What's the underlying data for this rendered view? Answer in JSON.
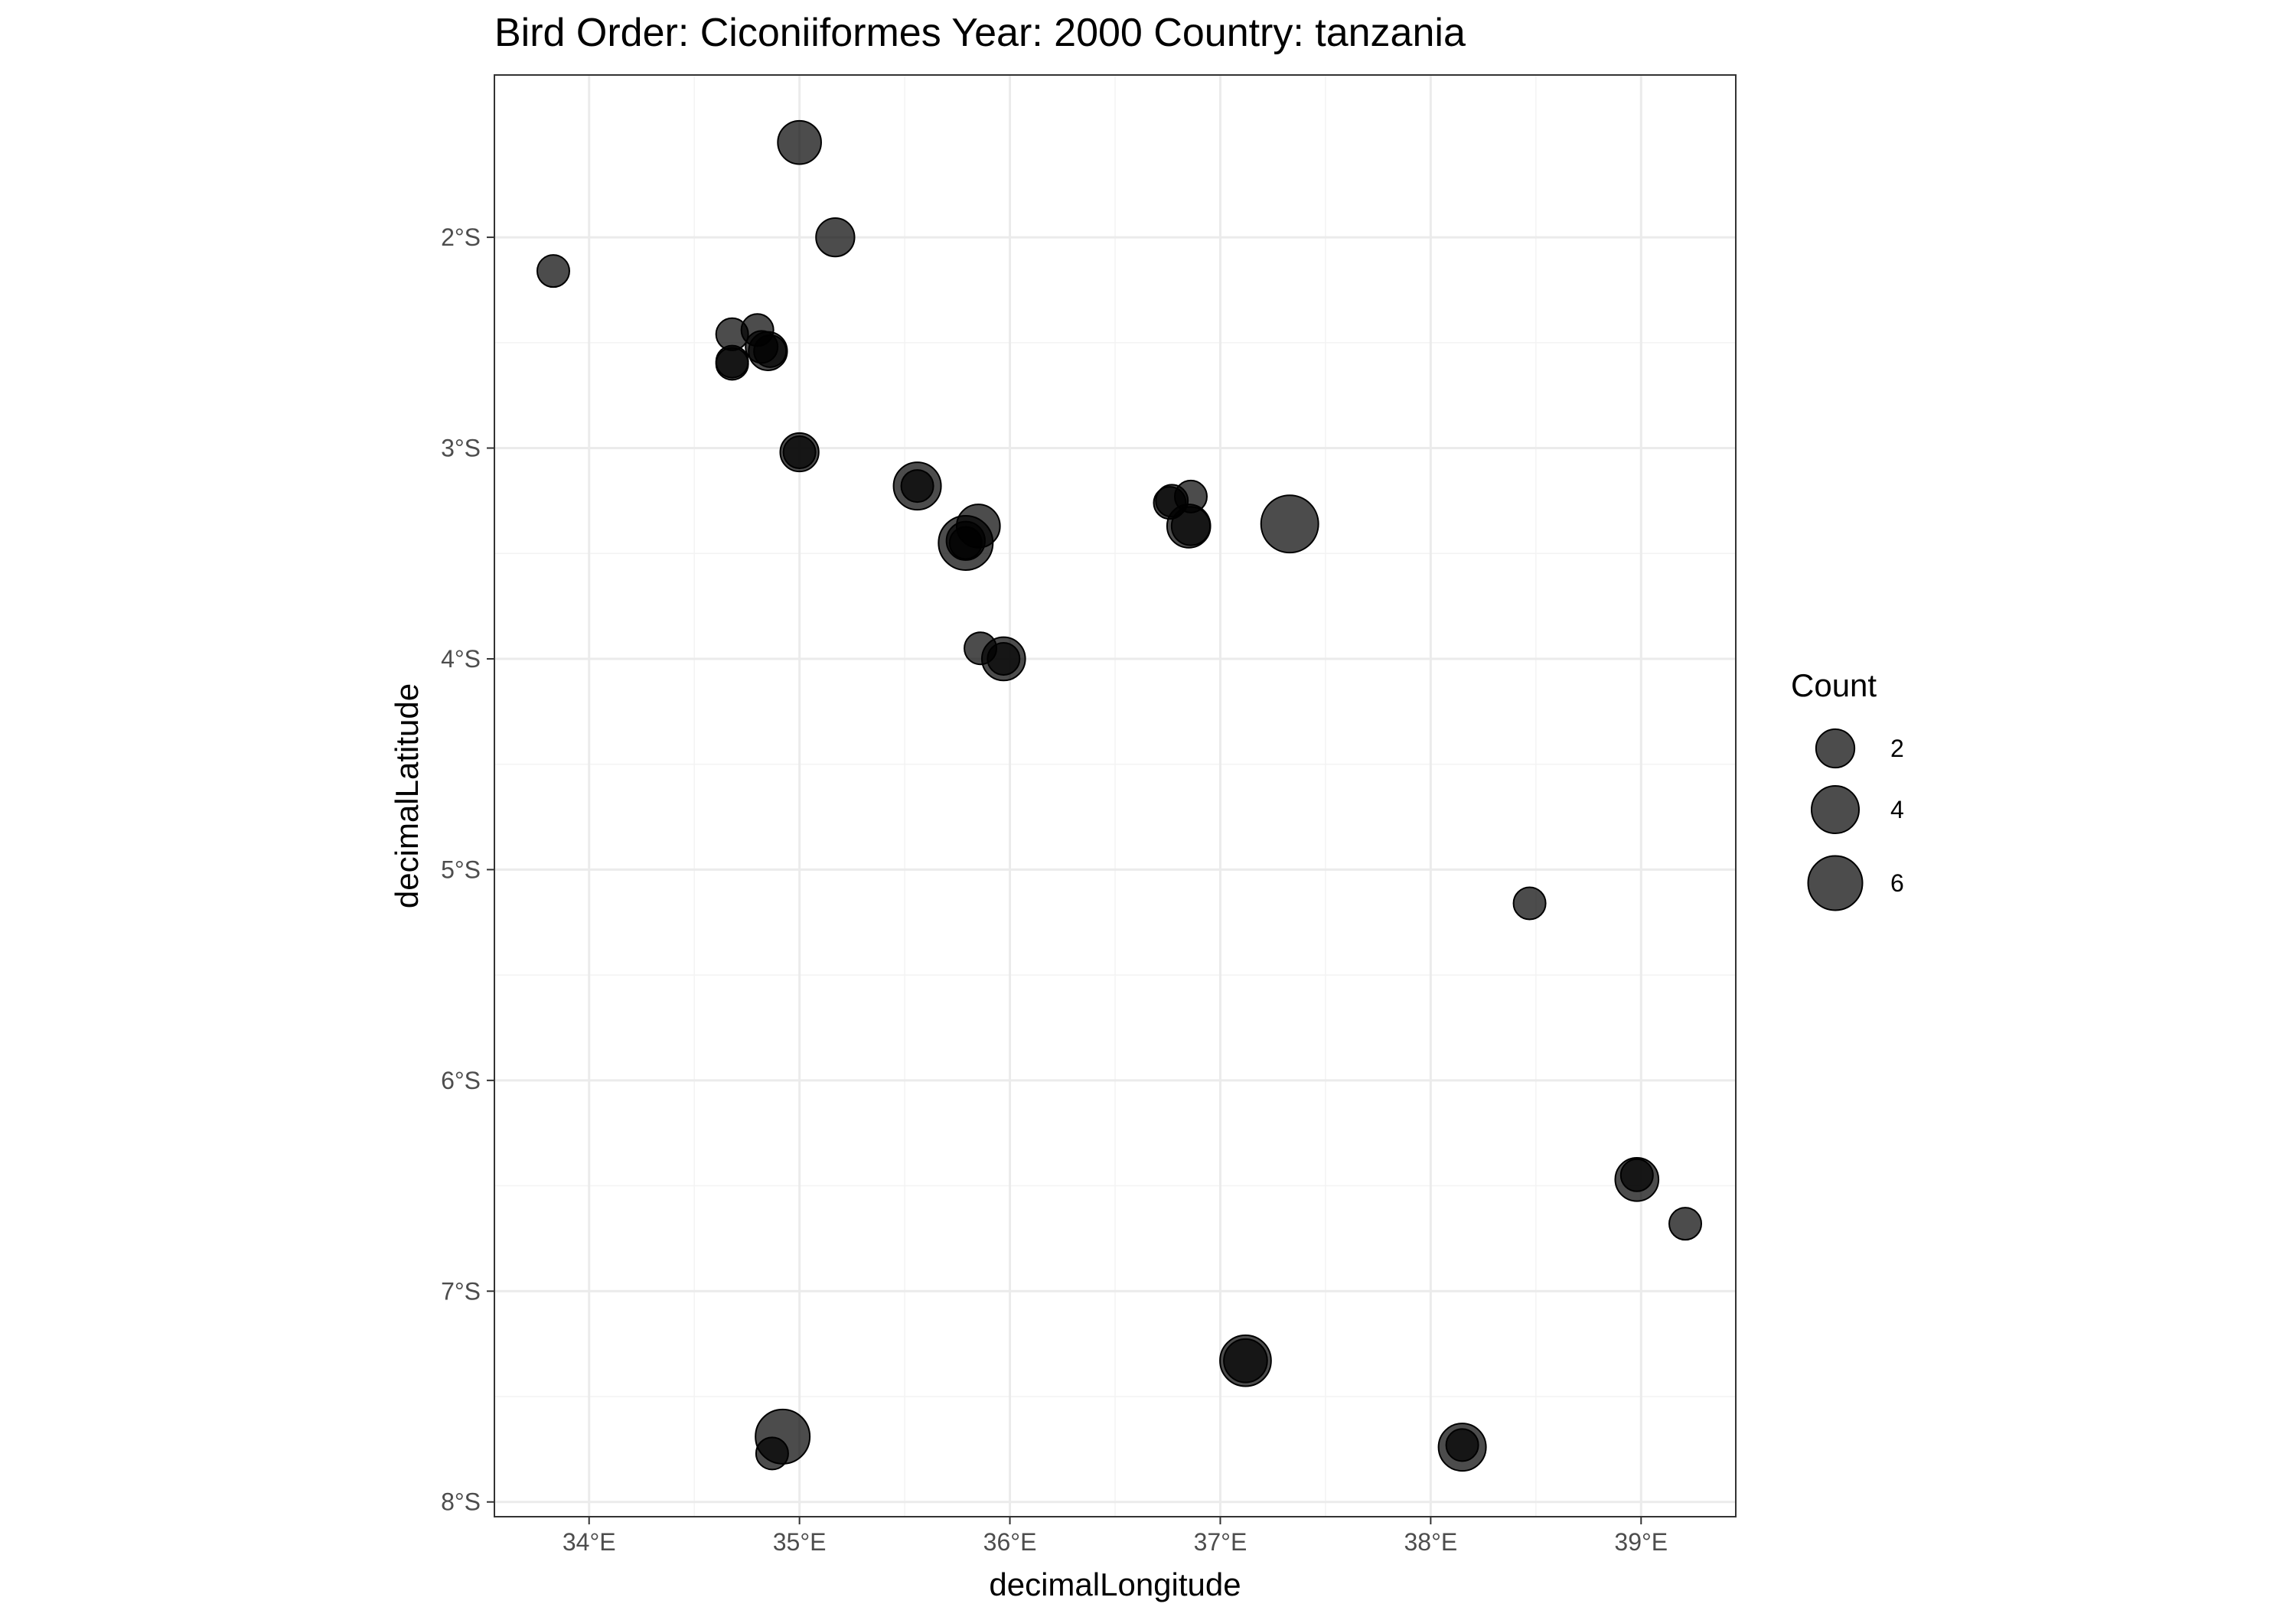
{
  "chart_data": {
    "type": "scatter",
    "title": "Bird Order: Ciconiiformes Year: 2000 Country: tanzania",
    "xlabel": "decimalLongitude",
    "ylabel": "decimalLatitude",
    "xlim": [
      33.55,
      39.45
    ],
    "ylim": [
      -8.07,
      -1.23
    ],
    "x_ticks": [
      34,
      35,
      36,
      37,
      38,
      39
    ],
    "x_tick_labels": [
      "34°E",
      "35°E",
      "36°E",
      "37°E",
      "38°E",
      "39°E"
    ],
    "y_ticks": [
      -2,
      -3,
      -4,
      -5,
      -6,
      -7,
      -8
    ],
    "y_tick_labels": [
      "2°S",
      "3°S",
      "4°S",
      "5°S",
      "6°S",
      "7°S",
      "8°S"
    ],
    "grid": true,
    "point_color": "#000000",
    "point_opacity": 0.7,
    "legend": {
      "title": "Count",
      "placement": "right",
      "entries": [
        {
          "label": "2",
          "value": 2
        },
        {
          "label": "4",
          "value": 4
        },
        {
          "label": "6",
          "value": 6
        }
      ]
    },
    "points": [
      {
        "lon": 35.0,
        "lat": -1.55,
        "count": 3
      },
      {
        "lon": 35.17,
        "lat": -2.0,
        "count": 2
      },
      {
        "lon": 33.83,
        "lat": -2.16,
        "count": 1
      },
      {
        "lon": 34.68,
        "lat": -2.46,
        "count": 1
      },
      {
        "lon": 34.8,
        "lat": -2.44,
        "count": 1
      },
      {
        "lon": 34.82,
        "lat": -2.52,
        "count": 1
      },
      {
        "lon": 34.85,
        "lat": -2.54,
        "count": 2
      },
      {
        "lon": 34.86,
        "lat": -2.54,
        "count": 1
      },
      {
        "lon": 34.68,
        "lat": -2.6,
        "count": 1
      },
      {
        "lon": 34.68,
        "lat": -2.59,
        "count": 1
      },
      {
        "lon": 35.0,
        "lat": -3.02,
        "count": 2
      },
      {
        "lon": 35.0,
        "lat": -3.02,
        "count": 1
      },
      {
        "lon": 35.56,
        "lat": -3.18,
        "count": 4
      },
      {
        "lon": 35.56,
        "lat": -3.18,
        "count": 1
      },
      {
        "lon": 35.85,
        "lat": -3.37,
        "count": 3
      },
      {
        "lon": 35.79,
        "lat": -3.45,
        "count": 6
      },
      {
        "lon": 35.79,
        "lat": -3.44,
        "count": 2
      },
      {
        "lon": 35.79,
        "lat": -3.45,
        "count": 1
      },
      {
        "lon": 36.77,
        "lat": -3.25,
        "count": 1
      },
      {
        "lon": 36.76,
        "lat": -3.26,
        "count": 1
      },
      {
        "lon": 36.86,
        "lat": -3.23,
        "count": 1
      },
      {
        "lon": 36.85,
        "lat": -3.37,
        "count": 3
      },
      {
        "lon": 36.86,
        "lat": -3.37,
        "count": 2
      },
      {
        "lon": 37.33,
        "lat": -3.36,
        "count": 7
      },
      {
        "lon": 35.86,
        "lat": -3.95,
        "count": 1
      },
      {
        "lon": 35.97,
        "lat": -4.0,
        "count": 3
      },
      {
        "lon": 35.97,
        "lat": -4.0,
        "count": 1
      },
      {
        "lon": 38.47,
        "lat": -5.16,
        "count": 1
      },
      {
        "lon": 38.98,
        "lat": -6.47,
        "count": 3
      },
      {
        "lon": 38.98,
        "lat": -6.45,
        "count": 1
      },
      {
        "lon": 39.21,
        "lat": -6.68,
        "count": 1
      },
      {
        "lon": 37.12,
        "lat": -7.33,
        "count": 5
      },
      {
        "lon": 37.12,
        "lat": -7.33,
        "count": 3
      },
      {
        "lon": 34.92,
        "lat": -7.69,
        "count": 6
      },
      {
        "lon": 34.87,
        "lat": -7.77,
        "count": 1
      },
      {
        "lon": 38.15,
        "lat": -7.74,
        "count": 4
      },
      {
        "lon": 38.15,
        "lat": -7.73,
        "count": 1
      }
    ]
  }
}
